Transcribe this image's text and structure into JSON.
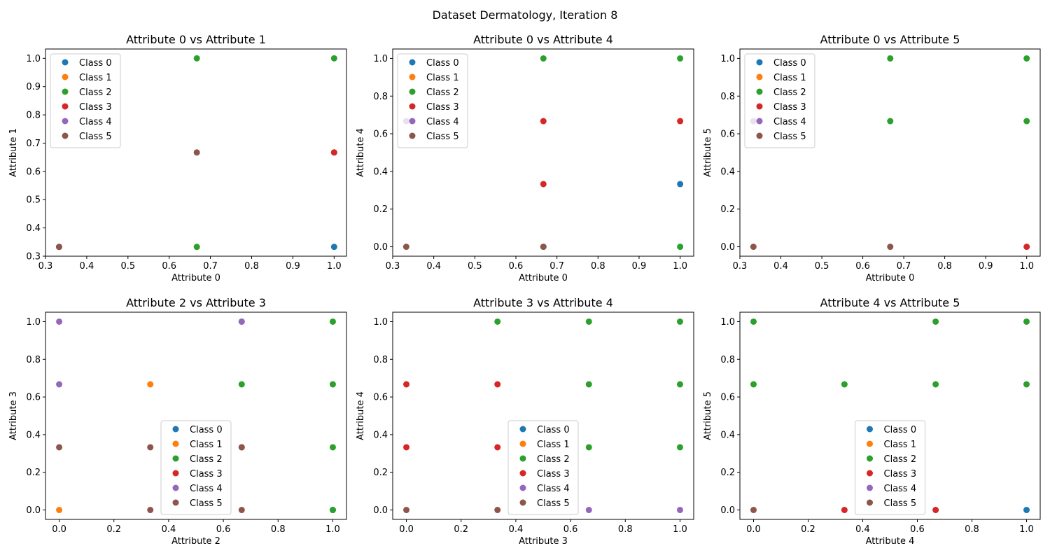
{
  "figure": {
    "title": "Dataset Dermatology, Iteration 8",
    "class_colors": [
      "#1f77b4",
      "#ff7f0e",
      "#2ca02c",
      "#d62728",
      "#9467bd",
      "#8c564b"
    ]
  },
  "chart_data": [
    {
      "type": "scatter",
      "title": "Attribute 0 vs Attribute 1",
      "xlabel": "Attribute 0",
      "ylabel": "Attribute 1",
      "xlim": [
        0.3,
        1.03
      ],
      "ylim": [
        0.3,
        1.033
      ],
      "xticks": [
        "0.3",
        "0.4",
        "0.5",
        "0.6",
        "0.7",
        "0.8",
        "0.9",
        "1.0"
      ],
      "yticks": [
        "0.3",
        "0.4",
        "0.5",
        "0.6",
        "0.7",
        "0.8",
        "0.9",
        "1.0"
      ],
      "legend": "upper-left",
      "series": [
        {
          "name": "Class 0",
          "points": [
            [
              1.0,
              0.333
            ]
          ]
        },
        {
          "name": "Class 1",
          "points": []
        },
        {
          "name": "Class 2",
          "points": [
            [
              0.667,
              1.0
            ],
            [
              0.667,
              0.333
            ],
            [
              1.0,
              1.0
            ],
            [
              1.0,
              0.667
            ]
          ]
        },
        {
          "name": "Class 3",
          "points": [
            [
              1.0,
              0.667
            ]
          ]
        },
        {
          "name": "Class 4",
          "points": [
            [
              0.333,
              0.333
            ]
          ]
        },
        {
          "name": "Class 5",
          "points": [
            [
              0.333,
              0.333
            ],
            [
              0.667,
              0.667
            ]
          ]
        }
      ]
    },
    {
      "type": "scatter",
      "title": "Attribute 0 vs Attribute 4",
      "xlabel": "Attribute 0",
      "ylabel": "Attribute 4",
      "xlim": [
        0.3,
        1.033
      ],
      "ylim": [
        -0.05,
        1.05
      ],
      "xticks": [
        "0.3",
        "0.4",
        "0.5",
        "0.6",
        "0.7",
        "0.8",
        "0.9",
        "1.0"
      ],
      "yticks": [
        "0.0",
        "0.2",
        "0.4",
        "0.6",
        "0.8",
        "1.0"
      ],
      "legend": "upper-left",
      "series": [
        {
          "name": "Class 0",
          "points": [
            [
              1.0,
              0.333
            ]
          ]
        },
        {
          "name": "Class 1",
          "points": [
            [
              0.333,
              0.667
            ]
          ]
        },
        {
          "name": "Class 2",
          "points": [
            [
              0.667,
              1.0
            ],
            [
              1.0,
              1.0
            ],
            [
              1.0,
              0.0
            ],
            [
              0.667,
              0.0
            ]
          ]
        },
        {
          "name": "Class 3",
          "points": [
            [
              0.667,
              0.667
            ],
            [
              0.667,
              0.333
            ],
            [
              1.0,
              0.667
            ]
          ]
        },
        {
          "name": "Class 4",
          "points": [
            [
              0.333,
              0.667
            ]
          ]
        },
        {
          "name": "Class 5",
          "points": [
            [
              0.333,
              0.0
            ],
            [
              0.667,
              0.0
            ]
          ]
        }
      ]
    },
    {
      "type": "scatter",
      "title": "Attribute 0 vs Attribute 5",
      "xlabel": "Attribute 0",
      "ylabel": "Attribute 5",
      "xlim": [
        0.3,
        1.033
      ],
      "ylim": [
        -0.05,
        1.05
      ],
      "xticks": [
        "0.3",
        "0.4",
        "0.5",
        "0.6",
        "0.7",
        "0.8",
        "0.9",
        "1.0"
      ],
      "yticks": [
        "0.0",
        "0.2",
        "0.4",
        "0.6",
        "0.8",
        "1.0"
      ],
      "legend": "upper-left",
      "series": [
        {
          "name": "Class 0",
          "points": []
        },
        {
          "name": "Class 1",
          "points": []
        },
        {
          "name": "Class 2",
          "points": [
            [
              0.333,
              0.667
            ],
            [
              0.667,
              1.0
            ],
            [
              0.667,
              0.667
            ],
            [
              1.0,
              1.0
            ],
            [
              1.0,
              0.667
            ]
          ]
        },
        {
          "name": "Class 3",
          "points": [
            [
              1.0,
              0.0
            ]
          ]
        },
        {
          "name": "Class 4",
          "points": [
            [
              0.333,
              0.667
            ]
          ]
        },
        {
          "name": "Class 5",
          "points": [
            [
              0.333,
              0.0
            ],
            [
              0.667,
              0.0
            ]
          ]
        }
      ]
    },
    {
      "type": "scatter",
      "title": "Attribute 2 vs Attribute 3",
      "xlabel": "Attribute 2",
      "ylabel": "Attribute 3",
      "xlim": [
        -0.05,
        1.05
      ],
      "ylim": [
        -0.05,
        1.05
      ],
      "xticks": [
        "0.0",
        "0.2",
        "0.4",
        "0.6",
        "0.8",
        "1.0"
      ],
      "yticks": [
        "0.0",
        "0.2",
        "0.4",
        "0.6",
        "0.8",
        "1.0"
      ],
      "legend": "lower-center",
      "series": [
        {
          "name": "Class 0",
          "points": [
            [
              1.0,
              0.0
            ]
          ]
        },
        {
          "name": "Class 1",
          "points": [
            [
              0.0,
              0.0
            ],
            [
              0.333,
              0.667
            ]
          ]
        },
        {
          "name": "Class 2",
          "points": [
            [
              0.667,
              1.0
            ],
            [
              0.667,
              0.667
            ],
            [
              1.0,
              1.0
            ],
            [
              1.0,
              0.667
            ],
            [
              1.0,
              0.333
            ],
            [
              1.0,
              0.0
            ]
          ]
        },
        {
          "name": "Class 3",
          "points": [
            [
              0.667,
              0.333
            ]
          ]
        },
        {
          "name": "Class 4",
          "points": [
            [
              0.0,
              1.0
            ],
            [
              0.0,
              0.667
            ],
            [
              0.667,
              1.0
            ]
          ]
        },
        {
          "name": "Class 5",
          "points": [
            [
              0.0,
              0.333
            ],
            [
              0.333,
              0.333
            ],
            [
              0.333,
              0.0
            ],
            [
              0.667,
              0.333
            ],
            [
              0.667,
              0.0
            ]
          ]
        }
      ]
    },
    {
      "type": "scatter",
      "title": "Attribute 3 vs Attribute 4",
      "xlabel": "Attribute 3",
      "ylabel": "Attribute 4",
      "xlim": [
        -0.05,
        1.05
      ],
      "ylim": [
        -0.05,
        1.05
      ],
      "xticks": [
        "0.0",
        "0.2",
        "0.4",
        "0.6",
        "0.8",
        "1.0"
      ],
      "yticks": [
        "0.0",
        "0.2",
        "0.4",
        "0.6",
        "0.8",
        "1.0"
      ],
      "legend": "lower-center",
      "series": [
        {
          "name": "Class 0",
          "points": []
        },
        {
          "name": "Class 1",
          "points": []
        },
        {
          "name": "Class 2",
          "points": [
            [
              0.333,
              1.0
            ],
            [
              0.667,
              1.0
            ],
            [
              1.0,
              1.0
            ],
            [
              0.667,
              0.667
            ],
            [
              1.0,
              0.667
            ],
            [
              0.667,
              0.333
            ],
            [
              1.0,
              0.333
            ]
          ]
        },
        {
          "name": "Class 3",
          "points": [
            [
              0.0,
              0.667
            ],
            [
              0.333,
              0.667
            ],
            [
              0.0,
              0.333
            ],
            [
              0.333,
              0.333
            ]
          ]
        },
        {
          "name": "Class 4",
          "points": [
            [
              0.667,
              0.0
            ],
            [
              1.0,
              0.0
            ]
          ]
        },
        {
          "name": "Class 5",
          "points": [
            [
              0.0,
              0.0
            ],
            [
              0.333,
              0.0
            ]
          ]
        }
      ]
    },
    {
      "type": "scatter",
      "title": "Attribute 4 vs Attribute 5",
      "xlabel": "Attribute 4",
      "ylabel": "Attribute 5",
      "xlim": [
        -0.05,
        1.05
      ],
      "ylim": [
        -0.05,
        1.05
      ],
      "xticks": [
        "0.0",
        "0.2",
        "0.4",
        "0.6",
        "0.8",
        "1.0"
      ],
      "yticks": [
        "0.0",
        "0.2",
        "0.4",
        "0.6",
        "0.8",
        "1.0"
      ],
      "legend": "lower-center",
      "series": [
        {
          "name": "Class 0",
          "points": [
            [
              1.0,
              0.0
            ]
          ]
        },
        {
          "name": "Class 1",
          "points": []
        },
        {
          "name": "Class 2",
          "points": [
            [
              0.0,
              1.0
            ],
            [
              0.0,
              0.667
            ],
            [
              0.333,
              0.667
            ],
            [
              0.667,
              1.0
            ],
            [
              0.667,
              0.667
            ],
            [
              1.0,
              1.0
            ],
            [
              1.0,
              0.667
            ]
          ]
        },
        {
          "name": "Class 3",
          "points": [
            [
              0.333,
              0.0
            ],
            [
              0.667,
              0.0
            ]
          ]
        },
        {
          "name": "Class 4",
          "points": []
        },
        {
          "name": "Class 5",
          "points": [
            [
              0.0,
              0.0
            ]
          ]
        }
      ]
    }
  ]
}
